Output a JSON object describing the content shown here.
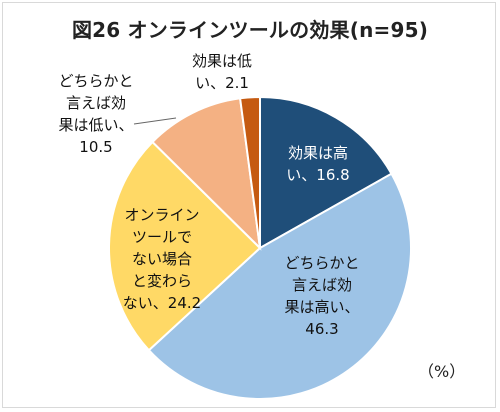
{
  "title": "図26 オンラインツールの効果(n=95)",
  "unit_label": "（%）",
  "chart_data": {
    "type": "pie",
    "title": "図26 オンラインツールの効果(n=95)",
    "unit": "（%）",
    "slices": [
      {
        "lines": [
          "効果は高",
          "い、16.8"
        ],
        "value": 16.8,
        "color": "#1f4e79"
      },
      {
        "lines": [
          "どちらかと",
          "言えば効",
          "果は高い、",
          "46.3"
        ],
        "value": 46.3,
        "color": "#9dc3e6"
      },
      {
        "lines": [
          "オンライン",
          "ツールで",
          "ない場合",
          "と変わら",
          "ない、24.2"
        ],
        "value": 24.2,
        "color": "#ffd966"
      },
      {
        "lines": [
          "どちらかと",
          "言えば効",
          "果は低い、",
          "10.5"
        ],
        "value": 10.5,
        "color": "#f4b183"
      },
      {
        "lines": [
          "効果は低",
          "い、2.1"
        ],
        "value": 2.1,
        "color": "#c55a11"
      }
    ]
  }
}
